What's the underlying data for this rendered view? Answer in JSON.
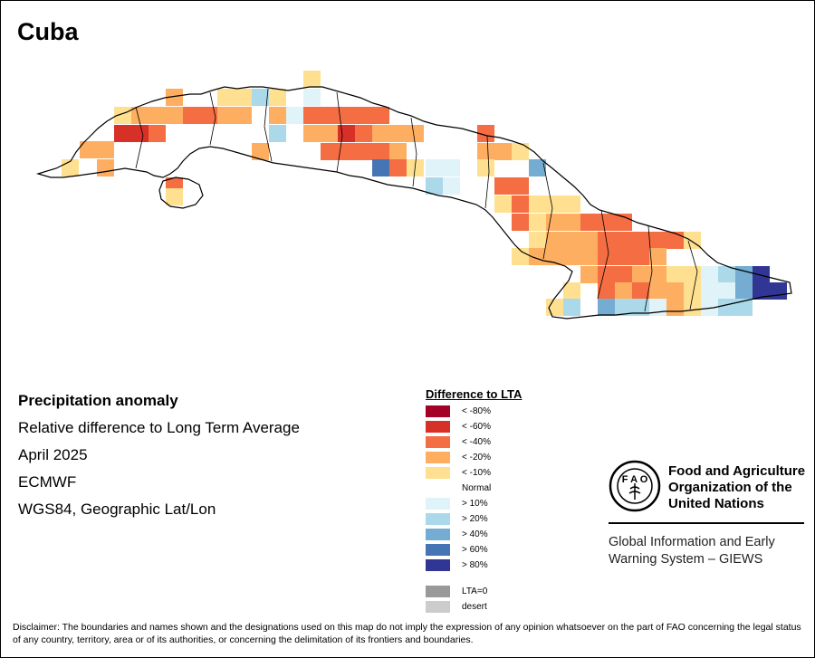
{
  "title": "Cuba",
  "info": {
    "heading": "Precipitation anomaly",
    "line1": "Relative difference to Long Term Average",
    "line2": "April 2025",
    "line3": "ECMWF",
    "line4": "WGS84, Geographic Lat/Lon"
  },
  "legend": {
    "title": "Difference to LTA",
    "items": [
      {
        "label": "< -80%",
        "color": "#a50026"
      },
      {
        "label": "< -60%",
        "color": "#d73027"
      },
      {
        "label": "< -40%",
        "color": "#f46d43"
      },
      {
        "label": "< -20%",
        "color": "#fdae61"
      },
      {
        "label": "< -10%",
        "color": "#fee090"
      },
      {
        "label": "Normal",
        "color": "#ffffff"
      },
      {
        "label": "> 10%",
        "color": "#e0f3f8"
      },
      {
        "label": "> 20%",
        "color": "#abd9e9"
      },
      {
        "label": "> 40%",
        "color": "#74add1"
      },
      {
        "label": "> 60%",
        "color": "#4575b4"
      },
      {
        "label": "> 80%",
        "color": "#313695"
      },
      {
        "label": "LTA=0",
        "color": "#999999"
      },
      {
        "label": "desert",
        "color": "#cccccc"
      }
    ]
  },
  "org": {
    "name_line1": "Food and Agriculture",
    "name_line2": "Organization of the",
    "name_line3": "United Nations",
    "giews_line1": "Global Information and Early",
    "giews_line2": "Warning System – GIEWS"
  },
  "disclaimer": "Disclaimer: The boundaries and names shown and the designations used on this map do not imply the expression of any opinion whatsoever on the part of FAO concerning the legal status of any country, territory, area or of its authorities, or concerning the delimitation of its frontiers and boundaries."
}
